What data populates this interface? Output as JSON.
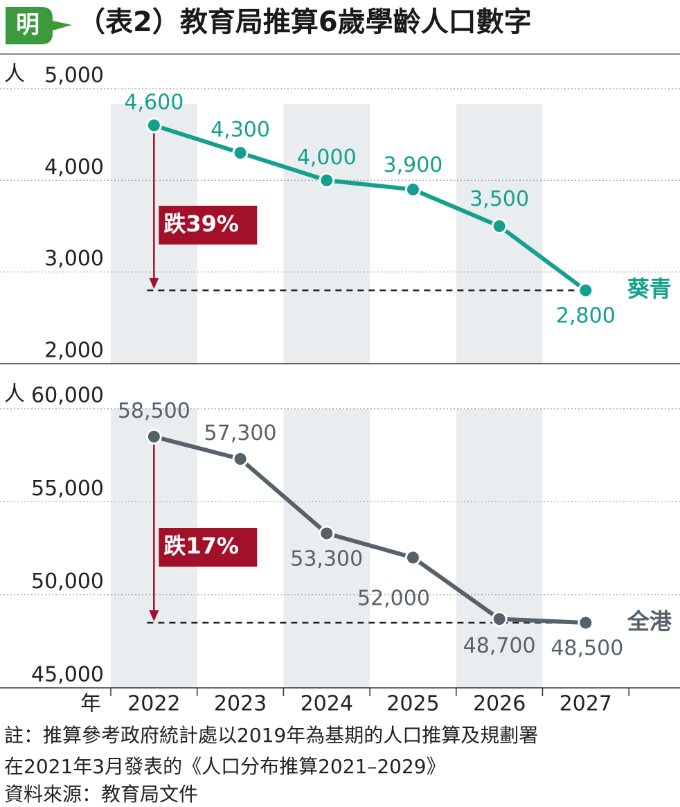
{
  "title": "（表2）教育局推算6歲學齡人口數字",
  "logo": "明",
  "categories": [
    "2022",
    "2023",
    "2024",
    "2025",
    "2026",
    "2027"
  ],
  "xlabel": "年",
  "chart_data": [
    {
      "type": "line",
      "ylabel": "人",
      "ylim": [
        2000,
        5000
      ],
      "yticks": [
        {
          "value": 2000,
          "label": "2,000"
        },
        {
          "value": 3000,
          "label": "3,000"
        },
        {
          "value": 4000,
          "label": "4,000"
        },
        {
          "value": 5000,
          "label": "5,000"
        }
      ],
      "series": [
        {
          "name": "葵青",
          "color": "#14a08c",
          "values": [
            4600,
            4300,
            4000,
            3900,
            3500,
            2800
          ],
          "value_labels": [
            "4,600",
            "4,300",
            "4,000",
            "3,900",
            "3,500",
            "2,800"
          ]
        }
      ],
      "annotation": "跌39%"
    },
    {
      "type": "line",
      "ylabel": "人",
      "ylim": [
        45000,
        60000
      ],
      "yticks": [
        {
          "value": 45000,
          "label": "45,000"
        },
        {
          "value": 50000,
          "label": "50,000"
        },
        {
          "value": 55000,
          "label": "55,000"
        },
        {
          "value": 60000,
          "label": "60,000"
        }
      ],
      "series": [
        {
          "name": "全港",
          "color": "#56616a",
          "values": [
            58500,
            57300,
            53300,
            52000,
            48700,
            48500
          ],
          "value_labels": [
            "58,500",
            "57,300",
            "53,300",
            "52,000",
            "48,700",
            "48,500"
          ]
        }
      ],
      "annotation": "跌17%"
    }
  ],
  "notes": [
    "註：推算參考政府統計處以2019年為基期的人口推算及規劃署",
    "在2021年3月發表的《人口分布推算2021–2029》",
    "資料來源：教育局文件"
  ]
}
